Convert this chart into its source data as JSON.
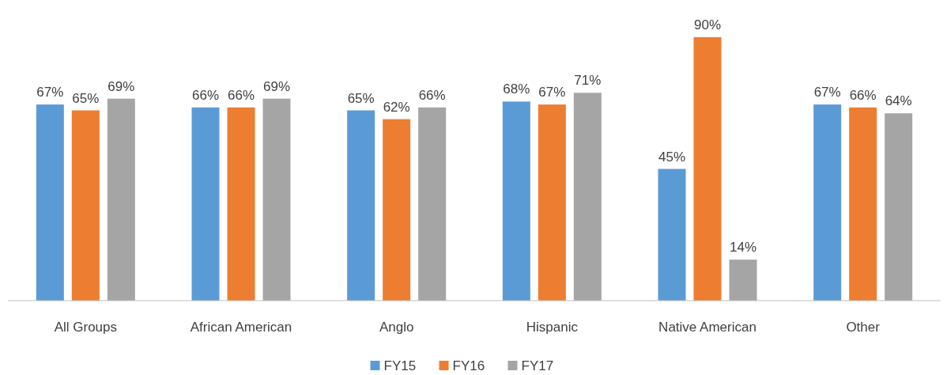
{
  "chart_data": {
    "type": "bar",
    "categories": [
      "All Groups",
      "African American",
      "Anglo",
      "Hispanic",
      "Native American",
      "Other"
    ],
    "series": [
      {
        "name": "FY15",
        "color": "#5b9bd5",
        "values": [
          67,
          66,
          65,
          68,
          45,
          67
        ],
        "value_labels": [
          "67%",
          "66%",
          "65%",
          "68%",
          "45%",
          "67%"
        ]
      },
      {
        "name": "FY16",
        "color": "#ed7d31",
        "values": [
          65,
          66,
          62,
          67,
          90,
          66
        ],
        "value_labels": [
          "65%",
          "66%",
          "62%",
          "67%",
          "90%",
          "66%"
        ]
      },
      {
        "name": "FY17",
        "color": "#a5a5a5",
        "values": [
          69,
          69,
          66,
          71,
          14,
          64
        ],
        "value_labels": [
          "69%",
          "69%",
          "66%",
          "71%",
          "14%",
          "64%"
        ]
      }
    ],
    "legend": "bottom"
  }
}
